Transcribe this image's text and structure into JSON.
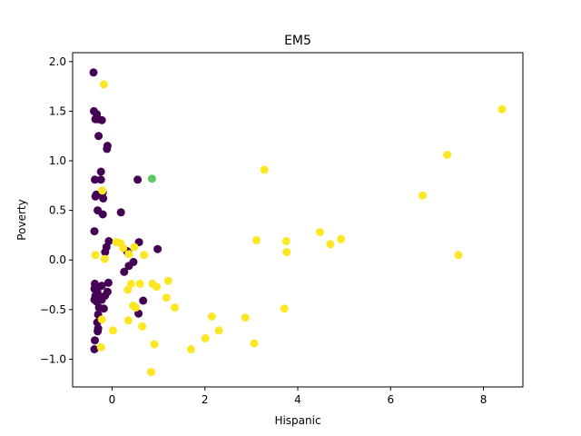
{
  "chart_data": {
    "type": "scatter",
    "title": "EM5",
    "xlabel": "Hispanic",
    "ylabel": "Poverty",
    "xlim": [
      -0.85,
      8.85
    ],
    "ylim": [
      -1.28,
      2.09
    ],
    "xticks": [
      0,
      2,
      4,
      6,
      8
    ],
    "xtick_labels": [
      "0",
      "2",
      "4",
      "6",
      "8"
    ],
    "yticks": [
      -1.0,
      -0.5,
      0.0,
      0.5,
      1.0,
      1.5,
      2.0
    ],
    "ytick_labels": [
      "−1.0",
      "−0.5",
      "0.0",
      "0.5",
      "1.0",
      "1.5",
      "2.0"
    ],
    "grid": false,
    "colors": {
      "purple": "#440154",
      "green": "#5ec962",
      "yellow": "#fde725"
    },
    "series": [
      {
        "color": "#440154",
        "points": [
          [
            -0.4,
            1.89
          ],
          [
            -0.39,
            1.5
          ],
          [
            -0.33,
            1.47
          ],
          [
            -0.36,
            1.42
          ],
          [
            -0.3,
            1.42
          ],
          [
            -0.22,
            1.41
          ],
          [
            -0.29,
            1.25
          ],
          [
            -0.1,
            1.15
          ],
          [
            -0.11,
            1.12
          ],
          [
            -0.24,
            0.89
          ],
          [
            -0.37,
            0.81
          ],
          [
            -0.24,
            0.81
          ],
          [
            -0.2,
            0.68
          ],
          [
            -0.34,
            0.66
          ],
          [
            -0.36,
            0.64
          ],
          [
            -0.19,
            0.62
          ],
          [
            -0.31,
            0.5
          ],
          [
            -0.2,
            0.46
          ],
          [
            0.19,
            0.48
          ],
          [
            -0.38,
            0.29
          ],
          [
            -0.07,
            0.19
          ],
          [
            -0.12,
            0.13
          ],
          [
            -0.15,
            0.08
          ],
          [
            0.35,
            0.07
          ],
          [
            0.32,
            0.09
          ],
          [
            0.36,
            -0.06
          ],
          [
            0.46,
            -0.02
          ],
          [
            0.26,
            -0.12
          ],
          [
            0.58,
            0.18
          ],
          [
            -0.37,
            -0.24
          ],
          [
            -0.38,
            -0.29
          ],
          [
            -0.32,
            -0.31
          ],
          [
            -0.36,
            -0.36
          ],
          [
            -0.3,
            -0.35
          ],
          [
            -0.26,
            -0.37
          ],
          [
            -0.38,
            -0.4
          ],
          [
            -0.33,
            -0.42
          ],
          [
            -0.22,
            -0.26
          ],
          [
            -0.08,
            -0.23
          ],
          [
            -0.1,
            -0.32
          ],
          [
            -0.15,
            -0.36
          ],
          [
            -0.22,
            -0.4
          ],
          [
            -0.28,
            -0.48
          ],
          [
            -0.18,
            -0.49
          ],
          [
            -0.3,
            -0.55
          ],
          [
            -0.32,
            -0.63
          ],
          [
            -0.3,
            -0.69
          ],
          [
            -0.31,
            -0.72
          ],
          [
            -0.37,
            -0.81
          ],
          [
            -0.38,
            -0.9
          ],
          [
            0.57,
            -0.54
          ],
          [
            0.67,
            -0.41
          ],
          [
            0.98,
            0.11
          ],
          [
            0.55,
            0.81
          ]
        ]
      },
      {
        "color": "#5ec962",
        "points": [
          [
            0.86,
            0.82
          ]
        ]
      },
      {
        "color": "#fde725",
        "points": [
          [
            -0.18,
            1.77
          ],
          [
            -0.21,
            0.7
          ],
          [
            -0.36,
            0.05
          ],
          [
            -0.16,
            0.01
          ],
          [
            0.09,
            0.18
          ],
          [
            0.18,
            0.17
          ],
          [
            0.24,
            0.12
          ],
          [
            0.48,
            0.13
          ],
          [
            0.69,
            0.05
          ],
          [
            0.36,
            0.06
          ],
          [
            0.41,
            -0.24
          ],
          [
            0.34,
            -0.3
          ],
          [
            0.6,
            -0.24
          ],
          [
            0.87,
            -0.24
          ],
          [
            0.96,
            -0.27
          ],
          [
            1.21,
            -0.21
          ],
          [
            1.17,
            -0.38
          ],
          [
            0.45,
            -0.46
          ],
          [
            0.51,
            -0.48
          ],
          [
            1.35,
            -0.48
          ],
          [
            0.35,
            -0.61
          ],
          [
            0.65,
            -0.67
          ],
          [
            0.02,
            -0.71
          ],
          [
            -0.22,
            -0.6
          ],
          [
            -0.24,
            -0.88
          ],
          [
            0.91,
            -0.85
          ],
          [
            0.84,
            -1.13
          ],
          [
            1.7,
            -0.9
          ],
          [
            2.01,
            -0.79
          ],
          [
            2.15,
            -0.57
          ],
          [
            2.3,
            -0.71
          ],
          [
            2.87,
            -0.58
          ],
          [
            3.06,
            -0.84
          ],
          [
            3.71,
            -0.49
          ],
          [
            3.11,
            0.2
          ],
          [
            3.28,
            0.91
          ],
          [
            3.75,
            0.19
          ],
          [
            3.76,
            0.08
          ],
          [
            4.48,
            0.28
          ],
          [
            4.7,
            0.16
          ],
          [
            4.93,
            0.21
          ],
          [
            6.69,
            0.65
          ],
          [
            7.22,
            1.06
          ],
          [
            7.46,
            0.05
          ],
          [
            8.4,
            1.52
          ]
        ]
      }
    ]
  }
}
